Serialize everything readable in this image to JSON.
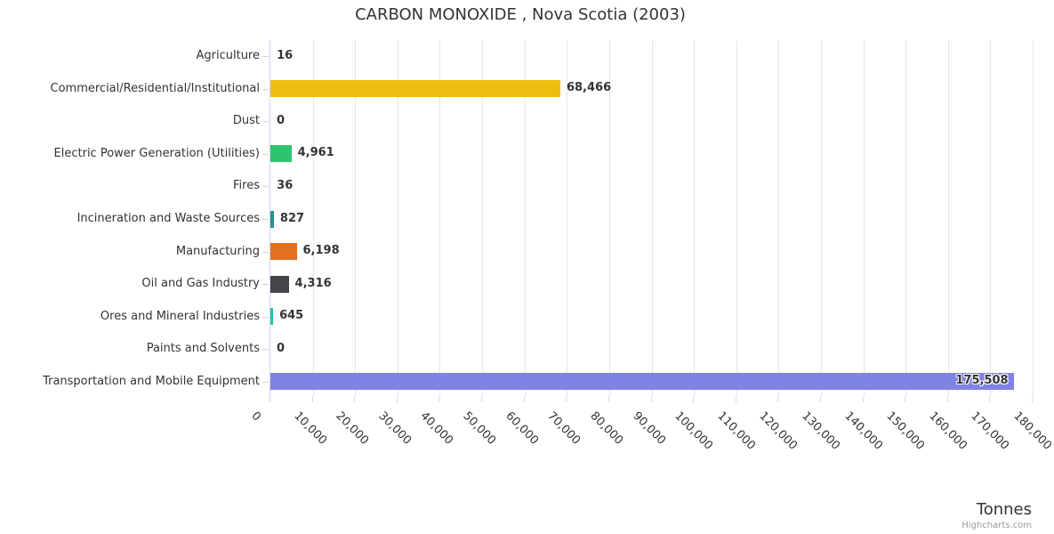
{
  "header": {
    "title": "CARBON MONOXIDE , Nova Scotia (2003)"
  },
  "chart_data": {
    "type": "bar",
    "orientation": "horizontal",
    "title": "CARBON MONOXIDE , Nova Scotia (2003)",
    "categories": [
      "Agriculture",
      "Commercial/Residential/Institutional",
      "Dust",
      "Electric Power Generation (Utilities)",
      "Fires",
      "Incineration and Waste Sources",
      "Manufacturing",
      "Oil and Gas Industry",
      "Ores and Mineral Industries",
      "Paints and Solvents",
      "Transportation and Mobile Equipment"
    ],
    "values": [
      16,
      68466,
      0,
      4961,
      36,
      827,
      6198,
      4316,
      645,
      0,
      175508
    ],
    "value_labels": [
      "16",
      "68,466",
      "0",
      "4,961",
      "36",
      "827",
      "6,198",
      "4,316",
      "645",
      "0",
      "175,508"
    ],
    "bar_colors": [
      null,
      "#EDBE0E",
      null,
      "#2DC36F",
      null,
      "#2B908F",
      "#E4701E",
      "#434348",
      "#22C6A5",
      null,
      "#7F83E3"
    ],
    "xlabel": "Tonnes",
    "xlim": [
      0,
      180000
    ],
    "x_tick_interval": 10000,
    "x_tick_labels": [
      "0",
      "10,000",
      "20,000",
      "30,000",
      "40,000",
      "50,000",
      "60,000",
      "70,000",
      "80,000",
      "90,000",
      "100,000",
      "110,000",
      "120,000",
      "130,000",
      "140,000",
      "150,000",
      "160,000",
      "170,000",
      "180,000"
    ],
    "grid": true,
    "legend": false
  },
  "credit": "Highcharts.com",
  "theme": {
    "grid_color": "#E6E6E6",
    "axis_color": "#CCD6EB",
    "text_color": "#333333",
    "credit_color": "#999999",
    "background": "#FFFFFF"
  }
}
